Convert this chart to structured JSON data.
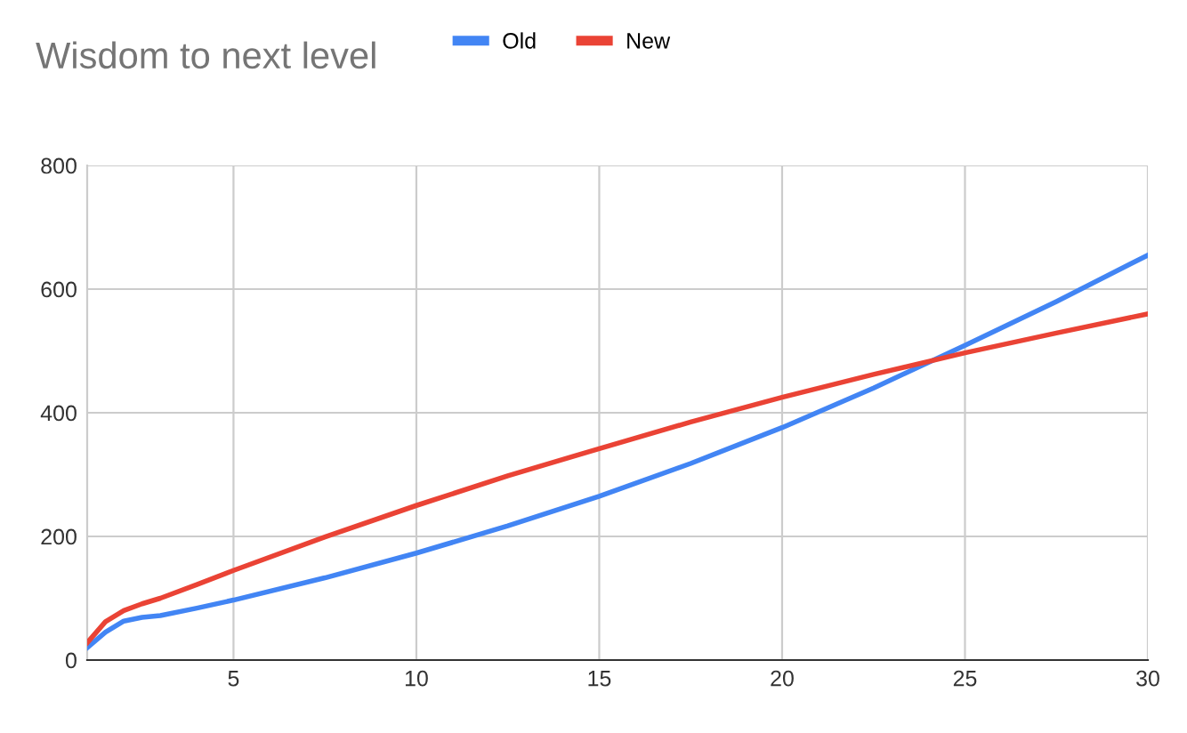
{
  "chart_data": {
    "type": "line",
    "title": "Wisdom to next level",
    "x": [
      1,
      1.5,
      2,
      2.5,
      3,
      4,
      5,
      7.5,
      10,
      12.5,
      15,
      17.5,
      20,
      22.5,
      25,
      27.5,
      30
    ],
    "series": [
      {
        "name": "Old",
        "color": "#4285f4",
        "values": [
          20,
          45,
          63,
          69,
          72,
          84,
          97,
          133,
          173,
          217,
          265,
          318,
          376,
          440,
          509,
          580,
          655
        ]
      },
      {
        "name": "New",
        "color": "#ea4335",
        "values": [
          28,
          62,
          80,
          91,
          100,
          122,
          145,
          199,
          250,
          298,
          342,
          385,
          425,
          462,
          497,
          529,
          560
        ]
      }
    ],
    "xlim": [
      1,
      30
    ],
    "xticks": [
      5,
      10,
      15,
      20,
      25,
      30
    ],
    "ylim": [
      0,
      800
    ],
    "yticks": [
      0,
      200,
      400,
      600,
      800
    ],
    "grid": true,
    "legend": "top",
    "line_style": "solid",
    "marker": "none"
  }
}
